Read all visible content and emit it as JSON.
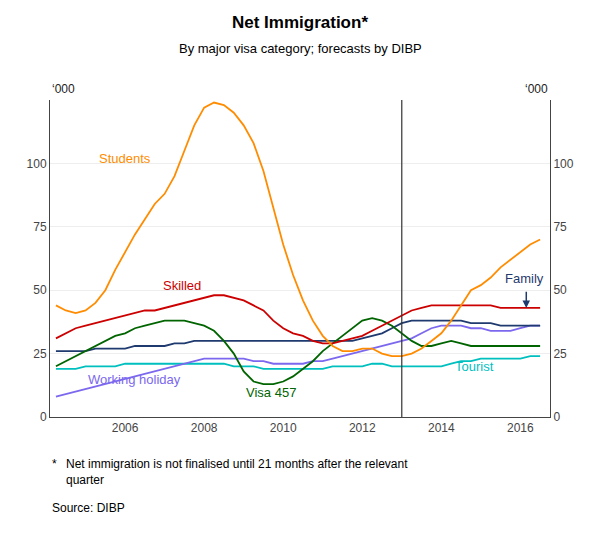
{
  "chart_data": {
    "type": "line",
    "title": "Net Immigration*",
    "subtitle": "By major visa category; forecasts by DIBP",
    "ylabel": "‘000",
    "y2label": "‘000",
    "footnote_marker": "*",
    "footnote": "Net immigration is not finalised until 21 months after the relevant\nquarter",
    "source_label": "Source:",
    "source": "DIBP",
    "background_color": "#ffffff",
    "grid": "y",
    "legend": false,
    "xlim": [
      2004.1,
      2016.75
    ],
    "xticks": [
      2006,
      2008,
      2010,
      2012,
      2014,
      2016
    ],
    "ylim": [
      0,
      125
    ],
    "yticks": [
      0,
      25,
      50,
      75,
      100
    ],
    "y2lim": [
      0,
      125
    ],
    "y2ticks": [
      0,
      25,
      50,
      75,
      100
    ],
    "vline": {
      "x": 2013.0
    },
    "arrow": {
      "x": 2016.15,
      "y_start": 50,
      "y_end": 43,
      "color": "#1F3A6E"
    },
    "x": [
      2004.25,
      2004.5,
      2004.75,
      2005.0,
      2005.25,
      2005.5,
      2005.75,
      2006.0,
      2006.25,
      2006.5,
      2006.75,
      2007.0,
      2007.25,
      2007.5,
      2007.75,
      2008.0,
      2008.25,
      2008.5,
      2008.75,
      2009.0,
      2009.25,
      2009.5,
      2009.75,
      2010.0,
      2010.25,
      2010.5,
      2010.75,
      2011.0,
      2011.25,
      2011.5,
      2011.75,
      2012.0,
      2012.25,
      2012.5,
      2012.75,
      2013.0,
      2013.25,
      2013.5,
      2013.75,
      2014.0,
      2014.25,
      2014.5,
      2014.75,
      2015.0,
      2015.25,
      2015.5,
      2015.75,
      2016.0,
      2016.25,
      2016.5
    ],
    "series": [
      {
        "name": "Tourist",
        "color": "#00BFBF",
        "label": {
          "x": 2014.3,
          "y": 16
        },
        "values": [
          19,
          19,
          19,
          20,
          20,
          20,
          20,
          21,
          21,
          21,
          21,
          21,
          21,
          21,
          21,
          21,
          21,
          21,
          20,
          20,
          20,
          19,
          19,
          19,
          19,
          19,
          19,
          19,
          20,
          20,
          20,
          20,
          21,
          21,
          20,
          20,
          20,
          20,
          20,
          20,
          21,
          22,
          22,
          23,
          23,
          23,
          23,
          23,
          24,
          24
        ]
      },
      {
        "name": "Working holiday",
        "color": "#7B68EE",
        "label": {
          "x": 2005.0,
          "y": 11
        },
        "values": [
          8,
          9,
          10,
          11,
          12,
          13,
          14,
          15,
          16,
          17,
          18,
          19,
          20,
          21,
          22,
          23,
          23,
          23,
          23,
          23,
          22,
          22,
          21,
          21,
          21,
          21,
          22,
          22,
          23,
          24,
          25,
          26,
          27,
          28,
          29,
          30,
          31,
          33,
          35,
          36,
          36,
          36,
          35,
          35,
          34,
          34,
          34,
          35,
          36,
          36
        ]
      },
      {
        "name": "Family",
        "color": "#1F3A6E",
        "label": {
          "x": 2015.55,
          "y": 51
        },
        "values": [
          26,
          26,
          26,
          26,
          27,
          27,
          27,
          27,
          28,
          28,
          28,
          28,
          29,
          29,
          30,
          30,
          30,
          30,
          30,
          30,
          30,
          30,
          30,
          30,
          30,
          30,
          30,
          30,
          30,
          30,
          30,
          31,
          32,
          33,
          35,
          37,
          38,
          38,
          38,
          38,
          38,
          38,
          37,
          37,
          37,
          36,
          36,
          36,
          36,
          36
        ]
      },
      {
        "name": "Visa 457",
        "color": "#006400",
        "label": {
          "x": 2009.0,
          "y": 6
        },
        "values": [
          20,
          22,
          24,
          26,
          28,
          30,
          32,
          33,
          35,
          36,
          37,
          38,
          38,
          38,
          37,
          36,
          34,
          30,
          25,
          18,
          14,
          13,
          13,
          14,
          16,
          19,
          22,
          26,
          29,
          32,
          35,
          38,
          39,
          38,
          36,
          33,
          30,
          28,
          28,
          29,
          30,
          29,
          28,
          28,
          28,
          28,
          28,
          28,
          28,
          28
        ]
      },
      {
        "name": "Skilled",
        "color": "#CC0000",
        "label": {
          "x": 2006.9,
          "y": 48
        },
        "values": [
          31,
          33,
          35,
          36,
          37,
          38,
          39,
          40,
          41,
          42,
          42,
          43,
          44,
          45,
          46,
          47,
          48,
          48,
          47,
          46,
          44,
          42,
          38,
          35,
          33,
          32,
          30,
          29,
          29,
          30,
          31,
          32,
          34,
          36,
          38,
          40,
          42,
          43,
          44,
          44,
          44,
          44,
          44,
          44,
          44,
          43,
          43,
          43,
          43,
          43
        ]
      },
      {
        "name": "Students",
        "color": "#FF8C00",
        "label": {
          "x": 2005.3,
          "y": 98
        },
        "values": [
          44,
          42,
          41,
          42,
          45,
          50,
          58,
          65,
          72,
          78,
          84,
          88,
          95,
          105,
          115,
          122,
          124,
          123,
          120,
          115,
          108,
          97,
          83,
          68,
          56,
          46,
          38,
          32,
          28,
          26,
          26,
          27,
          27,
          25,
          24,
          24,
          25,
          27,
          30,
          33,
          38,
          44,
          50,
          52,
          55,
          59,
          62,
          65,
          68,
          70
        ]
      }
    ]
  }
}
